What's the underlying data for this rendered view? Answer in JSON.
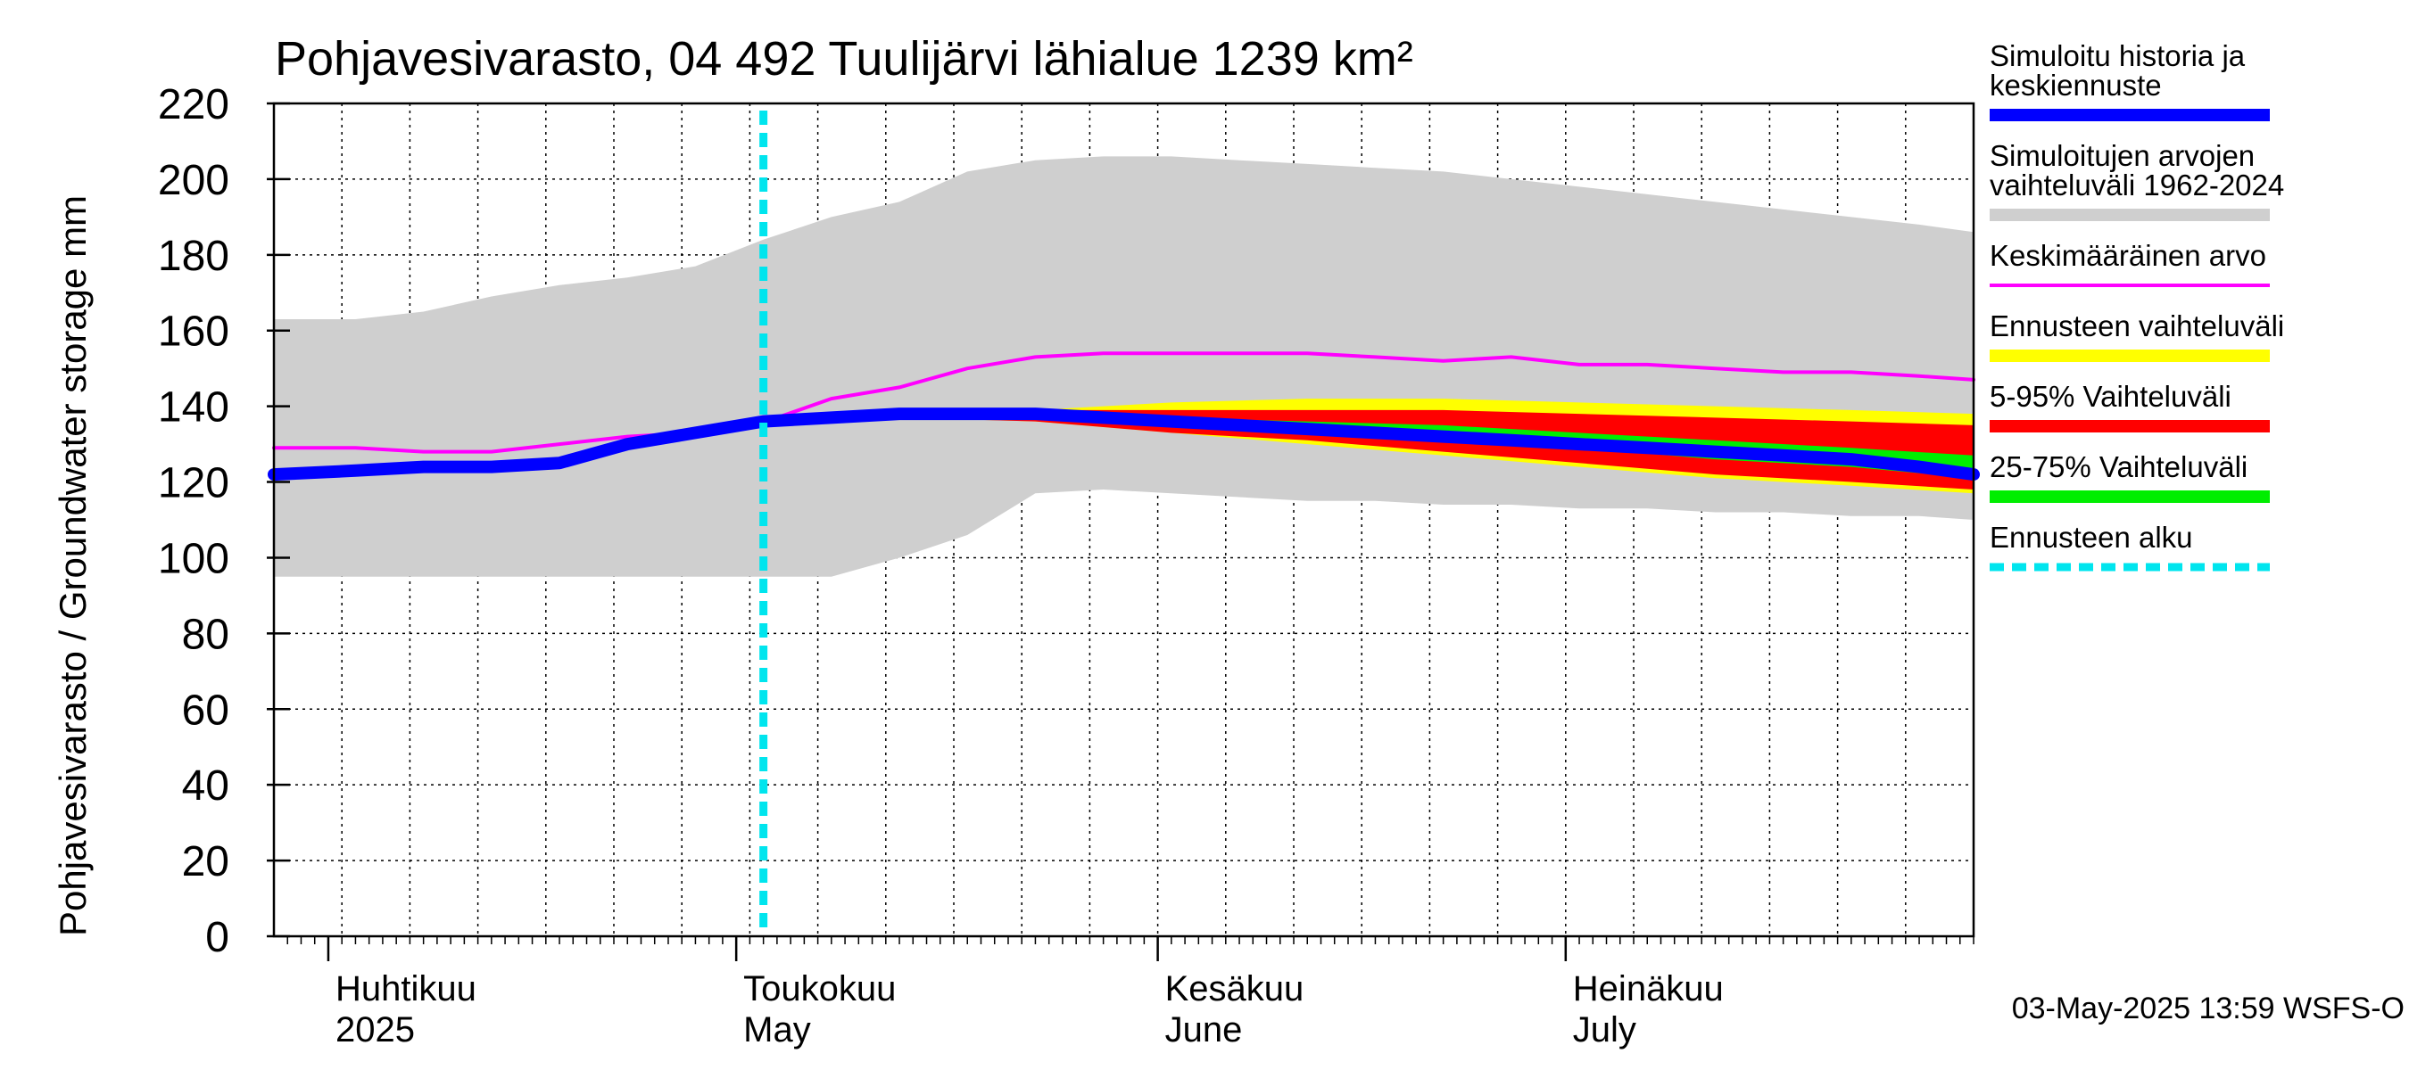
{
  "chart_data": {
    "type": "area",
    "title": "Pohjavesivarasto, 04 492 Tuulijärvi lähialue 1239 km²",
    "ylabel": "Pohjavesivarasto / Groundwater storage   mm",
    "ylim": [
      0,
      220
    ],
    "yticks": [
      0,
      20,
      40,
      60,
      80,
      100,
      120,
      140,
      160,
      180,
      200,
      220
    ],
    "xlim": [
      "2025-03-28",
      "2025-07-31"
    ],
    "grid": true,
    "legend_position": "right",
    "month_labels": [
      {
        "date": "2025-04-01",
        "fi": "Huhtikuu",
        "en": "2025"
      },
      {
        "date": "2025-05-01",
        "fi": "Toukokuu",
        "en": "May"
      },
      {
        "date": "2025-06-01",
        "fi": "Kesäkuu",
        "en": "June"
      },
      {
        "date": "2025-07-01",
        "fi": "Heinäkuu",
        "en": "July"
      }
    ],
    "forecast_start": "2025-05-03",
    "timestamp": "03-May-2025 13:59 WSFS-O",
    "legend": [
      {
        "key": "history",
        "label": "Simuloitu historia ja\nkeskiennuste",
        "color": "#0000ff"
      },
      {
        "key": "sim_range",
        "label": "Simuloitujen arvojen\nvaihteluväli 1962-2024",
        "color": "#cfcfcf"
      },
      {
        "key": "mean",
        "label": "Keskimääräinen arvo",
        "color": "#ff00ff"
      },
      {
        "key": "fc_range",
        "label": "Ennusteen vaihteluväli",
        "color": "#ffff00"
      },
      {
        "key": "p5_95",
        "label": "5-95% Vaihteluväli",
        "color": "#ff0000"
      },
      {
        "key": "p25_75",
        "label": "25-75% Vaihteluväli",
        "color": "#00ee00"
      },
      {
        "key": "fc_start",
        "label": "Ennusteen alku",
        "color": "#00e5ee"
      }
    ],
    "series": {
      "sim_range": {
        "x": [
          "2025-03-28",
          "2025-04-03",
          "2025-04-08",
          "2025-04-13",
          "2025-04-18",
          "2025-04-23",
          "2025-04-28",
          "2025-05-03",
          "2025-05-08",
          "2025-05-13",
          "2025-05-18",
          "2025-05-23",
          "2025-05-28",
          "2025-06-02",
          "2025-06-07",
          "2025-06-12",
          "2025-06-17",
          "2025-06-22",
          "2025-06-27",
          "2025-07-02",
          "2025-07-07",
          "2025-07-12",
          "2025-07-17",
          "2025-07-22",
          "2025-07-27",
          "2025-07-31"
        ],
        "upper": [
          163,
          163,
          165,
          169,
          172,
          174,
          177,
          184,
          190,
          194,
          202,
          205,
          206,
          206,
          205,
          204,
          203,
          202,
          200,
          198,
          196,
          194,
          192,
          190,
          188,
          186
        ],
        "lower": [
          95,
          95,
          95,
          95,
          95,
          95,
          95,
          95,
          95,
          100,
          106,
          117,
          118,
          117,
          116,
          115,
          115,
          114,
          114,
          113,
          113,
          112,
          112,
          111,
          111,
          110
        ]
      },
      "mean": {
        "x": [
          "2025-03-28",
          "2025-04-03",
          "2025-04-08",
          "2025-04-13",
          "2025-04-18",
          "2025-04-23",
          "2025-04-28",
          "2025-05-01",
          "2025-05-04",
          "2025-05-08",
          "2025-05-13",
          "2025-05-18",
          "2025-05-23",
          "2025-05-28",
          "2025-06-02",
          "2025-06-07",
          "2025-06-12",
          "2025-06-17",
          "2025-06-22",
          "2025-06-27",
          "2025-07-02",
          "2025-07-07",
          "2025-07-12",
          "2025-07-17",
          "2025-07-22",
          "2025-07-27",
          "2025-07-31"
        ],
        "values": [
          129,
          129,
          128,
          128,
          130,
          132,
          133,
          134,
          137,
          142,
          145,
          150,
          153,
          154,
          154,
          154,
          154,
          153,
          152,
          153,
          151,
          151,
          150,
          149,
          149,
          148,
          147
        ]
      },
      "history": {
        "x": [
          "2025-03-28",
          "2025-04-03",
          "2025-04-08",
          "2025-04-13",
          "2025-04-18",
          "2025-04-23",
          "2025-04-28",
          "2025-05-03",
          "2025-05-08",
          "2025-05-13",
          "2025-05-18",
          "2025-05-23",
          "2025-05-28",
          "2025-06-02",
          "2025-06-07",
          "2025-06-12",
          "2025-06-17",
          "2025-06-22",
          "2025-06-27",
          "2025-07-02",
          "2025-07-07",
          "2025-07-12",
          "2025-07-17",
          "2025-07-22",
          "2025-07-27",
          "2025-07-31"
        ],
        "values": [
          122,
          123,
          124,
          124,
          125,
          130,
          133,
          136,
          137,
          138,
          138,
          138,
          137,
          136,
          135,
          134,
          133,
          132,
          131,
          130,
          129,
          128,
          127,
          126,
          124,
          122
        ]
      },
      "forecast_bands": {
        "x": [
          "2025-05-03",
          "2025-05-13",
          "2025-05-23",
          "2025-06-02",
          "2025-06-12",
          "2025-06-22",
          "2025-07-02",
          "2025-07-12",
          "2025-07-22",
          "2025-07-31"
        ],
        "fc_upper": [
          137,
          138,
          139,
          141,
          142,
          142,
          141,
          140,
          139,
          138
        ],
        "fc_lower": [
          136,
          137,
          136,
          133,
          130,
          127,
          124,
          121,
          119,
          117
        ],
        "p95": [
          137,
          138,
          139,
          139,
          139,
          139,
          138,
          137,
          136,
          135
        ],
        "p5": [
          136,
          137,
          136,
          133,
          131,
          128,
          125,
          122,
          120,
          118
        ],
        "p75": [
          137,
          138,
          138,
          137,
          136,
          135,
          133,
          131,
          129,
          127
        ],
        "p25": [
          136,
          137,
          137,
          135,
          133,
          131,
          129,
          126,
          124,
          121
        ]
      }
    }
  }
}
